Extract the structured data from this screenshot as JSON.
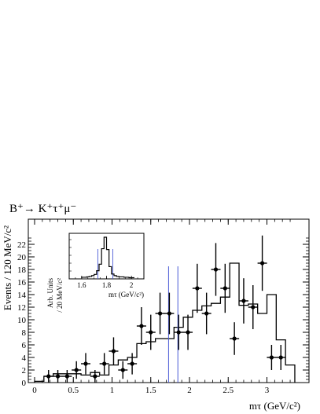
{
  "chart_data": {
    "type": "histogram",
    "title": "B⁺→ K⁺τ⁺μ⁻",
    "xlabel": "mτ (GeV/c²)",
    "ylabel": "Events / 120 MeV/c²",
    "xlim": [
      0,
      3.4
    ],
    "ylim": [
      0,
      23.5
    ],
    "x_ticks": [
      0,
      0.5,
      1,
      1.5,
      2,
      2.5,
      3
    ],
    "x_tick_labels": [
      "0",
      "0.5",
      "1",
      "1.5",
      "2",
      "2.5",
      "3"
    ],
    "y_ticks": [
      0,
      2,
      4,
      6,
      8,
      10,
      12,
      14,
      16,
      18,
      20,
      22
    ],
    "y_tick_labels": [
      "0",
      "2",
      "4",
      "6",
      "8",
      "10",
      "12",
      "14",
      "16",
      "18",
      "20",
      "22"
    ],
    "data_points": [
      {
        "x": 0.18,
        "y": 1,
        "err": 1.0
      },
      {
        "x": 0.3,
        "y": 1,
        "err": 1.0
      },
      {
        "x": 0.42,
        "y": 1,
        "err": 1.0
      },
      {
        "x": 0.54,
        "y": 2,
        "err": 1.4
      },
      {
        "x": 0.66,
        "y": 3,
        "err": 1.7
      },
      {
        "x": 0.78,
        "y": 1,
        "err": 1.0
      },
      {
        "x": 0.9,
        "y": 3,
        "err": 1.7
      },
      {
        "x": 1.02,
        "y": 5,
        "err": 2.2
      },
      {
        "x": 1.14,
        "y": 2,
        "err": 1.4
      },
      {
        "x": 1.26,
        "y": 3,
        "err": 1.7
      },
      {
        "x": 1.38,
        "y": 9,
        "err": 3.0
      },
      {
        "x": 1.5,
        "y": 8,
        "err": 2.8
      },
      {
        "x": 1.62,
        "y": 11,
        "err": 3.3
      },
      {
        "x": 1.74,
        "y": 11,
        "err": 3.3
      },
      {
        "x": 1.86,
        "y": 8,
        "err": 2.8
      },
      {
        "x": 1.98,
        "y": 8,
        "err": 2.8
      },
      {
        "x": 2.1,
        "y": 15,
        "err": 3.9
      },
      {
        "x": 2.22,
        "y": 11,
        "err": 3.3
      },
      {
        "x": 2.34,
        "y": 18,
        "err": 4.2
      },
      {
        "x": 2.46,
        "y": 15,
        "err": 3.9
      },
      {
        "x": 2.58,
        "y": 7,
        "err": 2.6
      },
      {
        "x": 2.7,
        "y": 13,
        "err": 3.6
      },
      {
        "x": 2.82,
        "y": 12,
        "err": 3.5
      },
      {
        "x": 2.94,
        "y": 19,
        "err": 4.4
      },
      {
        "x": 3.06,
        "y": 4,
        "err": 2.0
      },
      {
        "x": 3.18,
        "y": 4,
        "err": 2.0
      }
    ],
    "histogram": {
      "edges": [
        0.0,
        0.12,
        0.24,
        0.36,
        0.48,
        0.6,
        0.72,
        0.84,
        0.96,
        1.08,
        1.2,
        1.32,
        1.44,
        1.56,
        1.68,
        1.8,
        1.92,
        2.04,
        2.16,
        2.28,
        2.4,
        2.52,
        2.64,
        2.76,
        2.88,
        3.0,
        3.12,
        3.24,
        3.36
      ],
      "values": [
        0.2,
        1.0,
        1.4,
        1.4,
        1.4,
        1.2,
        1.6,
        1.2,
        2.8,
        3.6,
        4.0,
        6.2,
        6.5,
        7.0,
        7.0,
        8.8,
        10.4,
        11.5,
        12.2,
        12.6,
        13.6,
        19.0,
        12.3,
        12.5,
        11.0,
        14.0,
        6.8,
        2.8
      ]
    },
    "signal_window_lines": [
      1.73,
      1.85
    ],
    "inset": {
      "type": "histogram",
      "xlabel": "mτ (GeV/c²)",
      "ylabel_line1": "Arb. Units",
      "ylabel_line2": "/ 20 MeV/c²",
      "xlim": [
        1.5,
        2.1
      ],
      "x_ticks": [
        1.6,
        1.8,
        2
      ],
      "x_tick_labels": [
        "1.6",
        "1.8",
        "2"
      ],
      "edges": [
        1.6,
        1.62,
        1.64,
        1.66,
        1.68,
        1.7,
        1.72,
        1.74,
        1.76,
        1.78,
        1.8,
        1.82,
        1.84,
        1.86,
        1.88,
        1.9,
        1.92,
        1.94,
        1.96,
        1.98,
        2.0,
        2.02
      ],
      "values": [
        0.02,
        0.02,
        0.03,
        0.04,
        0.06,
        0.09,
        0.18,
        0.34,
        0.72,
        1.0,
        0.7,
        0.28,
        0.1,
        0.06,
        0.04,
        0.03,
        0.03,
        0.02,
        0.02,
        0.01,
        0.01
      ],
      "window_lines": [
        1.73,
        1.85
      ]
    }
  }
}
